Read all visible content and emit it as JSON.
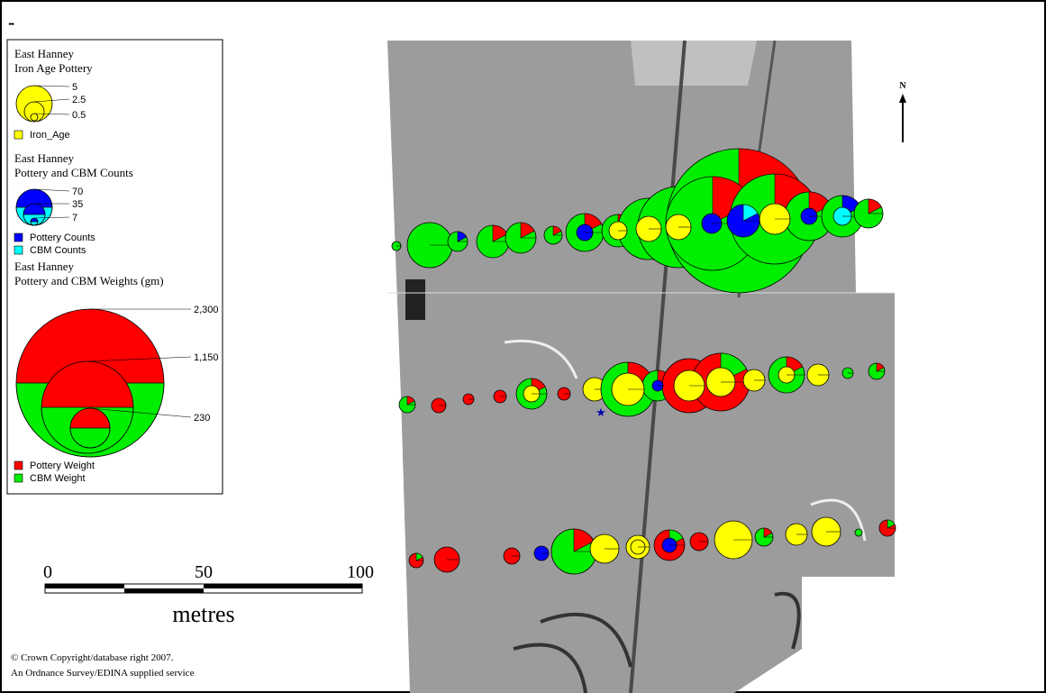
{
  "corner_mark": "-",
  "legend": {
    "sections": [
      {
        "title": [
          "East Hanney",
          "Iron Age Pottery"
        ],
        "sizes": [
          "5",
          "2.5",
          "0.5"
        ],
        "items": [
          "Iron_Age"
        ]
      },
      {
        "title": [
          "East Hanney",
          "Pottery and CBM Counts"
        ],
        "sizes": [
          "70",
          "35",
          "7"
        ],
        "items": [
          "Pottery Counts",
          "CBM Counts"
        ]
      },
      {
        "title": [
          "East Hanney",
          "Pottery and CBM Weights (gm)"
        ],
        "sizes": [
          "2,300",
          "1,150",
          "230"
        ],
        "items": [
          "Pottery Weight",
          "CBM Weight"
        ]
      }
    ]
  },
  "north": "N",
  "scale_bar": {
    "labels": [
      "0",
      "50",
      "100"
    ],
    "unit": "metres"
  },
  "copyright": [
    "© Crown Copyright/database right 2007.",
    "An Ordnance Survey/EDINA supplied service"
  ]
}
